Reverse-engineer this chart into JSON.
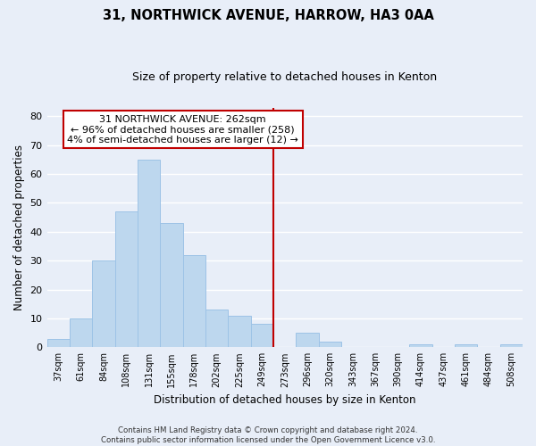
{
  "title": "31, NORTHWICK AVENUE, HARROW, HA3 0AA",
  "subtitle": "Size of property relative to detached houses in Kenton",
  "xlabel": "Distribution of detached houses by size in Kenton",
  "ylabel": "Number of detached properties",
  "bar_labels": [
    "37sqm",
    "61sqm",
    "84sqm",
    "108sqm",
    "131sqm",
    "155sqm",
    "178sqm",
    "202sqm",
    "225sqm",
    "249sqm",
    "273sqm",
    "296sqm",
    "320sqm",
    "343sqm",
    "367sqm",
    "390sqm",
    "414sqm",
    "437sqm",
    "461sqm",
    "484sqm",
    "508sqm"
  ],
  "bar_values": [
    3,
    10,
    30,
    47,
    65,
    43,
    32,
    13,
    11,
    8,
    0,
    5,
    2,
    0,
    0,
    0,
    1,
    0,
    1,
    0,
    1
  ],
  "bar_color": "#bdd7ee",
  "bar_edge_color": "#9dc3e6",
  "vline_x": 9.5,
  "vline_color": "#c00000",
  "annotation_line1": "31 NORTHWICK AVENUE: 262sqm",
  "annotation_line2": "← 96% of detached houses are smaller (258)",
  "annotation_line3": "4% of semi-detached houses are larger (12) →",
  "annotation_box_color": "#ffffff",
  "annotation_box_edge": "#c00000",
  "ylim": [
    0,
    83
  ],
  "yticks": [
    0,
    10,
    20,
    30,
    40,
    50,
    60,
    70,
    80
  ],
  "footer_text": "Contains HM Land Registry data © Crown copyright and database right 2024.\nContains public sector information licensed under the Open Government Licence v3.0.",
  "bg_color": "#e8eef8",
  "grid_color": "#ffffff",
  "plot_bg_color": "#e8eef8"
}
